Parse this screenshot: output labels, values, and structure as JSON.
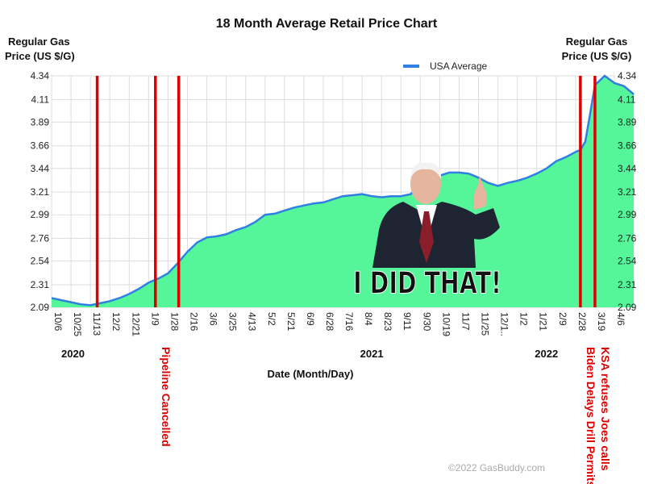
{
  "chart_data": {
    "type": "area",
    "title": "18 Month Average Retail Price Chart",
    "ylabel_left": [
      "Regular Gas",
      "Price (US $/G)"
    ],
    "ylabel_right": [
      "Regular Gas",
      "Price (US $/G)"
    ],
    "xlabel": "Date (Month/Day)",
    "y_ticks": [
      "4.34",
      "4.11",
      "3.89",
      "3.66",
      "3.44",
      "3.21",
      "2.99",
      "2.76",
      "2.54",
      "2.31",
      "2.09"
    ],
    "ylim": [
      2.09,
      4.34
    ],
    "x_ticks": [
      "10/6",
      "10/25",
      "11/13",
      "12/2",
      "12/21",
      "1/9",
      "1/28",
      "2/16",
      "3/6",
      "3/25",
      "4/13",
      "5/2",
      "5/21",
      "6/9",
      "6/28",
      "7/16",
      "8/4",
      "8/23",
      "9/11",
      "9/30",
      "10/19",
      "11/7",
      "11/25",
      "12/1..",
      "1/2",
      "1/21",
      "2/9",
      "2/28",
      "3/19",
      "4/6"
    ],
    "year_labels": [
      {
        "text": "2020",
        "at_tick": 1.1
      },
      {
        "text": "2021",
        "at_tick": 16.5
      },
      {
        "text": "2022",
        "at_tick": 25.5
      }
    ],
    "series": [
      {
        "name": "USA Average",
        "color": "#2f80e0",
        "fill": "#55f59a",
        "x": [
          0,
          0.5,
          1,
          1.5,
          2,
          2.5,
          3,
          3.5,
          4,
          4.5,
          5,
          5.5,
          6,
          6.5,
          7,
          7.5,
          8,
          8.5,
          9,
          9.5,
          10,
          10.5,
          11,
          11.5,
          12,
          12.5,
          13,
          13.5,
          14,
          14.5,
          15,
          15.5,
          16,
          16.5,
          17,
          17.5,
          18,
          18.5,
          19,
          19.5,
          20,
          20.5,
          21,
          21.5,
          22,
          22.5,
          23,
          23.5,
          24,
          24.5,
          25,
          25.5,
          26,
          26.5,
          27,
          27.25,
          27.5,
          27.75,
          28,
          28.5,
          29,
          29.5,
          30
        ],
        "y": [
          2.18,
          2.16,
          2.14,
          2.12,
          2.11,
          2.13,
          2.15,
          2.18,
          2.22,
          2.27,
          2.33,
          2.37,
          2.42,
          2.52,
          2.63,
          2.72,
          2.77,
          2.78,
          2.8,
          2.84,
          2.87,
          2.92,
          2.99,
          3.0,
          3.03,
          3.06,
          3.08,
          3.1,
          3.11,
          3.14,
          3.17,
          3.18,
          3.19,
          3.17,
          3.16,
          3.17,
          3.17,
          3.19,
          3.28,
          3.34,
          3.37,
          3.4,
          3.4,
          3.39,
          3.35,
          3.3,
          3.27,
          3.3,
          3.32,
          3.35,
          3.39,
          3.44,
          3.51,
          3.55,
          3.6,
          3.62,
          3.7,
          3.97,
          4.25,
          4.34,
          4.27,
          4.24,
          4.16
        ]
      }
    ],
    "annotations": [
      {
        "label": "Pipeline Cancelled",
        "at_tick": 5.35,
        "color": "#dd0000"
      },
      {
        "label": "",
        "at_tick": 2.35,
        "color": "#dd0000"
      },
      {
        "label": "",
        "at_tick": 6.55,
        "color": "#dd0000"
      },
      {
        "label": "Biden Delays Drill Permits",
        "at_tick": 27.25,
        "color": "#dd0000"
      },
      {
        "label": "KSA refuses Joes calls",
        "at_tick": 28.0,
        "color": "#dd0000"
      }
    ],
    "meme_caption": "I DID THAT!",
    "watermark": "©2022 GasBuddy.com",
    "grid": true,
    "legend_position": "top-right"
  }
}
